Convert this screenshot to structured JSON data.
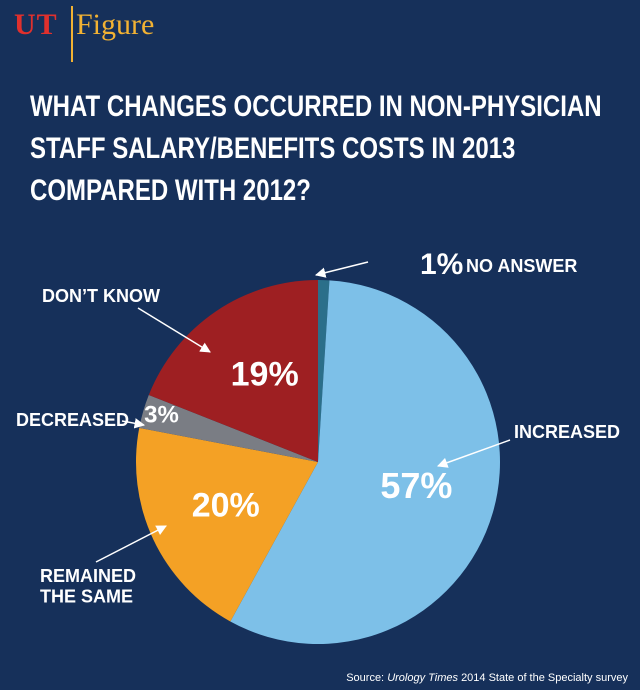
{
  "brand": {
    "ut": "UT",
    "figure": "Figure"
  },
  "title_lines": [
    "WHAT CHANGES OCCURRED IN NON-PHYSICIAN",
    "STAFF SALARY/BENEFITS COSTS IN 2013",
    "COMPARED WITH 2012?"
  ],
  "source": {
    "prefix": "Source:",
    "publication": "Urology Times",
    "suffix": "2014 State of the Specialty survey"
  },
  "colors": {
    "background": "#16305a",
    "increased": "#7dc0e8",
    "remained": "#f4a125",
    "decreased": "#7a7d84",
    "dont_know": "#9e1f22",
    "no_answer": "#2b6f8a",
    "brand_red": "#e0302d",
    "brand_gold": "#f2b233"
  },
  "chart_data": {
    "type": "pie",
    "title": "WHAT CHANGES OCCURRED IN NON-PHYSICIAN STAFF SALARY/BENEFITS COSTS IN 2013 COMPARED WITH 2012?",
    "start": "12 o'clock, clockwise",
    "slices": [
      {
        "key": "no_answer",
        "category": "NO ANSWER",
        "value": 1,
        "label": "1%"
      },
      {
        "key": "increased",
        "category": "INCREASED",
        "value": 57,
        "label": "57%"
      },
      {
        "key": "remained",
        "category": "REMAINED THE SAME",
        "value": 20,
        "label": "20%"
      },
      {
        "key": "decreased",
        "category": "DECREASED",
        "value": 3,
        "label": "3%"
      },
      {
        "key": "dont_know",
        "category": "DON'T KNOW",
        "value": 19,
        "label": "19%"
      }
    ],
    "callouts": {
      "increased": [
        "INCREASED"
      ],
      "remained": [
        "REMAINED",
        "THE SAME"
      ],
      "decreased": [
        "DECREASED"
      ],
      "dont_know": [
        "DON’T KNOW"
      ],
      "no_answer_pct": "1%",
      "no_answer_text": "NO ANSWER"
    }
  }
}
